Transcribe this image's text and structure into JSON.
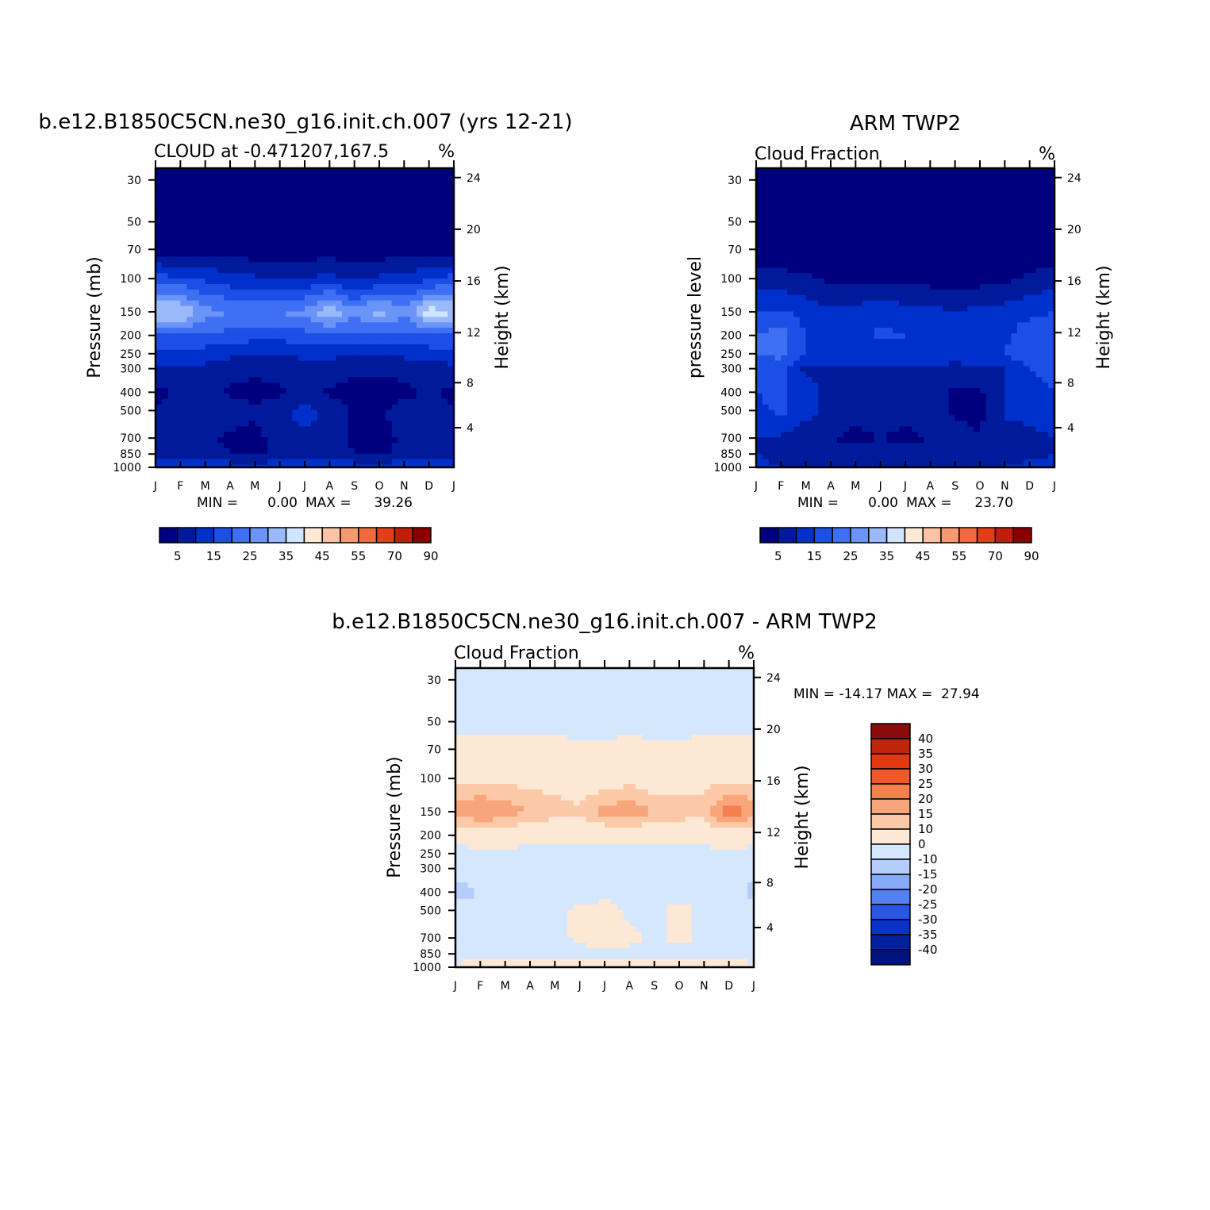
{
  "months": [
    "J",
    "F",
    "M",
    "A",
    "M",
    "J",
    "J",
    "A",
    "S",
    "O",
    "N",
    "D",
    "J"
  ],
  "pressure_ticks": [
    "30",
    "50",
    "70",
    "100",
    "150",
    "200",
    "250",
    "300",
    "400",
    "500",
    "700",
    "850",
    "1000"
  ],
  "height_ticks": [
    "24",
    "20",
    "16",
    "12",
    "8",
    "4"
  ],
  "colors": {
    "seq": [
      "#00007f",
      "#001a9c",
      "#0030cc",
      "#1c4fe6",
      "#3f6ff2",
      "#6a94f7",
      "#9ab9fa",
      "#cfe4fd",
      "#fde7d5",
      "#fbc3a3",
      "#f5996f",
      "#f06a3f",
      "#e43d18",
      "#c01e08",
      "#8a0000"
    ],
    "diff": [
      "#001480",
      "#00209c",
      "#0a32c8",
      "#2856e6",
      "#5580f2",
      "#86aaf8",
      "#b5cdfb",
      "#d5e7fd",
      "#fde8d6",
      "#fcc9a8",
      "#f9a57c",
      "#f57f4e",
      "#f2582a",
      "#e2380f",
      "#c0240a",
      "#8a0b0b"
    ]
  },
  "panel_a": {
    "title": "b.e12.B1850C5CN.ne30_g16.init.ch.007 (yrs 12-21)",
    "subtitle_left": "CLOUD at -0.471207,167.5",
    "subtitle_right": "%",
    "ylabel_left": "Pressure (mb)",
    "ylabel_right": "Height (km)",
    "min_label": "MIN =",
    "min_value": "0.00",
    "max_label": "MAX =",
    "max_value": "39.26",
    "colorbar_labels": [
      "5",
      "15",
      "25",
      "35",
      "45",
      "55",
      "70",
      "90"
    ]
  },
  "panel_b": {
    "title": "ARM TWP2",
    "subtitle_left": "Cloud Fraction",
    "subtitle_right": "%",
    "ylabel_left": "pressure level",
    "ylabel_right": "Height (km)",
    "min_label": "MIN =",
    "min_value": "0.00",
    "max_label": "MAX =",
    "max_value": "23.70",
    "colorbar_labels": [
      "5",
      "15",
      "25",
      "35",
      "45",
      "55",
      "70",
      "90"
    ]
  },
  "panel_c": {
    "title": "b.e12.B1850C5CN.ne30_g16.init.ch.007 - ARM TWP2",
    "subtitle_left": "Cloud Fraction",
    "subtitle_right": "%",
    "ylabel_left": "Pressure (mb)",
    "ylabel_right": "Height (km)",
    "stats": "MIN = -14.17 MAX =  27.94",
    "colorbar_labels": [
      "40",
      "35",
      "30",
      "25",
      "20",
      "15",
      "10",
      "0",
      "-10",
      "-15",
      "-20",
      "-25",
      "-30",
      "-35",
      "-40"
    ]
  },
  "chart_data": [
    {
      "type": "heatmap",
      "title": "b.e12.B1850C5CN.ne30_g16.init.ch.007 (yrs 12-21)",
      "subtitle": "CLOUD at -0.471207,167.5",
      "units": "%",
      "xlabel": "",
      "ylabel": "Pressure (mb)",
      "ylabel_right": "Height (km)",
      "x": [
        "J",
        "F",
        "M",
        "A",
        "M",
        "J",
        "J",
        "A",
        "S",
        "O",
        "N",
        "D",
        "J"
      ],
      "y_pressure_mb": [
        1000,
        850,
        700,
        500,
        400,
        300,
        250,
        200,
        150,
        100,
        70,
        50,
        30
      ],
      "yscale": "log",
      "y_right_km": [
        4,
        8,
        12,
        16,
        20,
        24
      ],
      "contour_levels": [
        5,
        10,
        15,
        20,
        25,
        30,
        35,
        40,
        45,
        50,
        55,
        60,
        70,
        80,
        90
      ],
      "z_percent_rows_by_pressure": [
        [
          14,
          14,
          14,
          14,
          14,
          14,
          14,
          14,
          14,
          14,
          14,
          14,
          14
        ],
        [
          7,
          7,
          7,
          5,
          4,
          6,
          7,
          7,
          5,
          4,
          6,
          7,
          7
        ],
        [
          8,
          8,
          6,
          4,
          3,
          8,
          9,
          10,
          4,
          3,
          6,
          8,
          8
        ],
        [
          6,
          8,
          8,
          8,
          6,
          8,
          12,
          8,
          4,
          4,
          8,
          9,
          6
        ],
        [
          3,
          7,
          8,
          4,
          3,
          4,
          7,
          4,
          3,
          3,
          3,
          6,
          3
        ],
        [
          9,
          9,
          9,
          7,
          6,
          7,
          8,
          8,
          6,
          6,
          7,
          8,
          9
        ],
        [
          12,
          12,
          12,
          11,
          10,
          10,
          11,
          11,
          10,
          10,
          11,
          12,
          12
        ],
        [
          20,
          20,
          20,
          18,
          17,
          17,
          18,
          18,
          18,
          18,
          18,
          20,
          20
        ],
        [
          36,
          36,
          27,
          25,
          24,
          25,
          27,
          35,
          27,
          33,
          26,
          38,
          36
        ],
        [
          17,
          16,
          14,
          12,
          11,
          9,
          10,
          12,
          9,
          11,
          12,
          14,
          17
        ],
        [
          3,
          3,
          3,
          2,
          2,
          2,
          2,
          2,
          2,
          2,
          2,
          3,
          3
        ],
        [
          1,
          1,
          1,
          1,
          1,
          1,
          1,
          1,
          1,
          1,
          1,
          1,
          1
        ],
        [
          0,
          0,
          0,
          0,
          0,
          0,
          0,
          0,
          0,
          0,
          0,
          0,
          0
        ]
      ],
      "min": 0.0,
      "max": 39.26
    },
    {
      "type": "heatmap",
      "title": "ARM TWP2",
      "subtitle": "Cloud Fraction",
      "units": "%",
      "xlabel": "",
      "ylabel": "pressure level",
      "ylabel_right": "Height (km)",
      "x": [
        "J",
        "F",
        "M",
        "A",
        "M",
        "J",
        "J",
        "A",
        "S",
        "O",
        "N",
        "D",
        "J"
      ],
      "y_pressure_mb": [
        1000,
        850,
        700,
        500,
        400,
        300,
        250,
        200,
        150,
        100,
        70,
        50,
        30
      ],
      "yscale": "log",
      "y_right_km": [
        4,
        8,
        12,
        16,
        20,
        24
      ],
      "contour_levels": [
        5,
        10,
        15,
        20,
        25,
        30,
        35,
        40,
        45,
        50,
        55,
        60,
        70,
        80,
        90
      ],
      "z_percent_rows_by_pressure": [
        [
          12,
          10,
          10,
          10,
          10,
          10,
          10,
          10,
          10,
          10,
          10,
          12,
          12
        ],
        [
          10,
          8,
          7,
          7,
          7,
          7,
          7,
          7,
          7,
          7,
          7,
          8,
          10
        ],
        [
          10,
          9,
          6,
          5,
          4,
          5,
          4,
          5,
          7,
          5,
          7,
          8,
          10
        ],
        [
          14,
          16,
          12,
          8,
          6,
          7,
          6,
          9,
          4,
          4,
          11,
          12,
          14
        ],
        [
          15,
          16,
          13,
          8,
          7,
          7,
          8,
          7,
          4,
          4,
          10,
          14,
          15
        ],
        [
          16,
          16,
          9,
          9,
          9,
          9,
          9,
          8,
          8,
          9,
          10,
          15,
          16
        ],
        [
          20,
          22,
          14,
          13,
          12,
          12,
          13,
          14,
          13,
          13,
          15,
          18,
          20
        ],
        [
          20,
          23,
          15,
          14,
          13,
          16,
          15,
          14,
          13,
          15,
          14,
          18,
          20
        ],
        [
          15,
          16,
          13,
          11,
          12,
          14,
          12,
          12,
          10,
          12,
          12,
          14,
          15
        ],
        [
          8,
          7,
          6,
          4,
          3,
          4,
          4,
          3,
          2,
          3,
          4,
          6,
          8
        ],
        [
          2,
          1,
          1,
          1,
          1,
          1,
          1,
          1,
          1,
          1,
          1,
          1,
          2
        ],
        [
          0,
          0,
          0,
          0,
          0,
          0,
          0,
          0,
          0,
          0,
          0,
          0,
          0
        ],
        [
          0,
          0,
          0,
          0,
          0,
          0,
          0,
          0,
          0,
          0,
          0,
          0,
          0
        ]
      ],
      "min": 0.0,
      "max": 23.7
    },
    {
      "type": "heatmap",
      "title": "b.e12.B1850C5CN.ne30_g16.init.ch.007 - ARM TWP2",
      "subtitle": "Cloud Fraction",
      "units": "%",
      "xlabel": "",
      "ylabel": "Pressure (mb)",
      "ylabel_right": "Height (km)",
      "x": [
        "J",
        "F",
        "M",
        "A",
        "M",
        "J",
        "J",
        "A",
        "S",
        "O",
        "N",
        "D",
        "J"
      ],
      "y_pressure_mb": [
        1000,
        850,
        700,
        500,
        400,
        300,
        250,
        200,
        150,
        100,
        70,
        50,
        30
      ],
      "yscale": "log",
      "y_right_km": [
        4,
        8,
        12,
        16,
        20,
        24
      ],
      "contour_levels": [
        -40,
        -35,
        -30,
        -25,
        -20,
        -15,
        -10,
        0,
        10,
        15,
        20,
        25,
        30,
        35,
        40
      ],
      "z_percent_rows_by_pressure": [
        [
          2,
          3,
          3,
          3,
          3,
          3,
          3,
          3,
          3,
          3,
          3,
          3,
          2
        ],
        [
          -3,
          -3,
          -3,
          -3,
          -3,
          -3,
          -3,
          -3,
          -3,
          -3,
          -3,
          -3,
          -3
        ],
        [
          -3,
          -2,
          -3,
          -3,
          -3,
          2,
          4,
          3,
          -3,
          3,
          -3,
          -2,
          -3
        ],
        [
          -6,
          -8,
          -4,
          -3,
          -3,
          2,
          5,
          -2,
          -3,
          4,
          -3,
          -3,
          -6
        ],
        [
          -12,
          -10,
          -5,
          -4,
          -4,
          -4,
          -4,
          -4,
          -3,
          -4,
          -4,
          -5,
          -12
        ],
        [
          -8,
          -7,
          -6,
          -5,
          -5,
          -5,
          -5,
          -5,
          -5,
          -5,
          -5,
          -6,
          -8
        ],
        [
          -3,
          -3,
          -3,
          -3,
          -3,
          -3,
          -3,
          -3,
          -3,
          -3,
          -3,
          -3,
          -3
        ],
        [
          4,
          5,
          5,
          4,
          4,
          4,
          4,
          4,
          4,
          4,
          4,
          6,
          4
        ],
        [
          18,
          20,
          19,
          14,
          12,
          11,
          17,
          19,
          15,
          13,
          12,
          24,
          18
        ],
        [
          9,
          9,
          8,
          8,
          8,
          6,
          6,
          8,
          6,
          7,
          8,
          9,
          9
        ],
        [
          2,
          2,
          2,
          2,
          2,
          1,
          1,
          2,
          1,
          1,
          2,
          2,
          2
        ],
        [
          -2,
          -2,
          -2,
          -2,
          -2,
          -2,
          -2,
          -2,
          -2,
          -2,
          -2,
          -2,
          -2
        ],
        [
          -2,
          -2,
          -2,
          -2,
          -2,
          -2,
          -2,
          -2,
          -2,
          -2,
          -2,
          -2,
          -2
        ]
      ],
      "min": -14.17,
      "max": 27.94
    }
  ]
}
